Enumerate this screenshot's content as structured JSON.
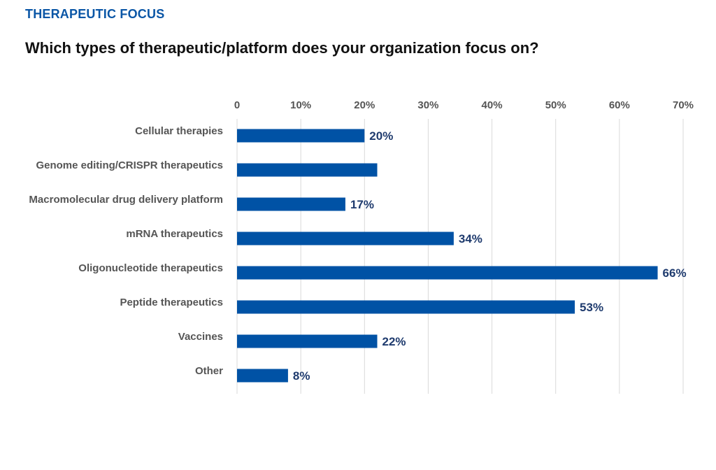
{
  "header": {
    "kicker": "THERAPEUTIC FOCUS",
    "title": "Which types of therapeutic/platform does your organization focus on?"
  },
  "colors": {
    "kicker": "#0a56a6",
    "bar": "#0052a5",
    "grid": "#d9d9d9",
    "data_label": "#1f3b6e",
    "axis_label": "#555555"
  },
  "chart_data": {
    "type": "bar",
    "orientation": "horizontal",
    "categories": [
      "Cellular therapies",
      "Genome editing/CRISPR therapeutics",
      "Macromolecular drug delivery platform",
      "mRNA therapeutics",
      "Oligonucleotide therapeutics",
      "Peptide therapeutics",
      "Vaccines",
      "Other"
    ],
    "values": [
      20,
      22,
      17,
      34,
      66,
      53,
      22,
      8
    ],
    "data_labels": [
      "20%",
      "",
      "17%",
      "34%",
      "66%",
      "53%",
      "22%",
      "8%"
    ],
    "xticks": [
      0,
      10,
      20,
      30,
      40,
      50,
      60,
      70
    ],
    "xtick_labels": [
      "0",
      "10%",
      "20%",
      "30%",
      "40%",
      "50%",
      "60%",
      "70%"
    ],
    "xlim": [
      0,
      70
    ],
    "x_axis_position": "top",
    "grid": true,
    "legend": "none",
    "title": "",
    "xlabel": "",
    "ylabel": ""
  }
}
